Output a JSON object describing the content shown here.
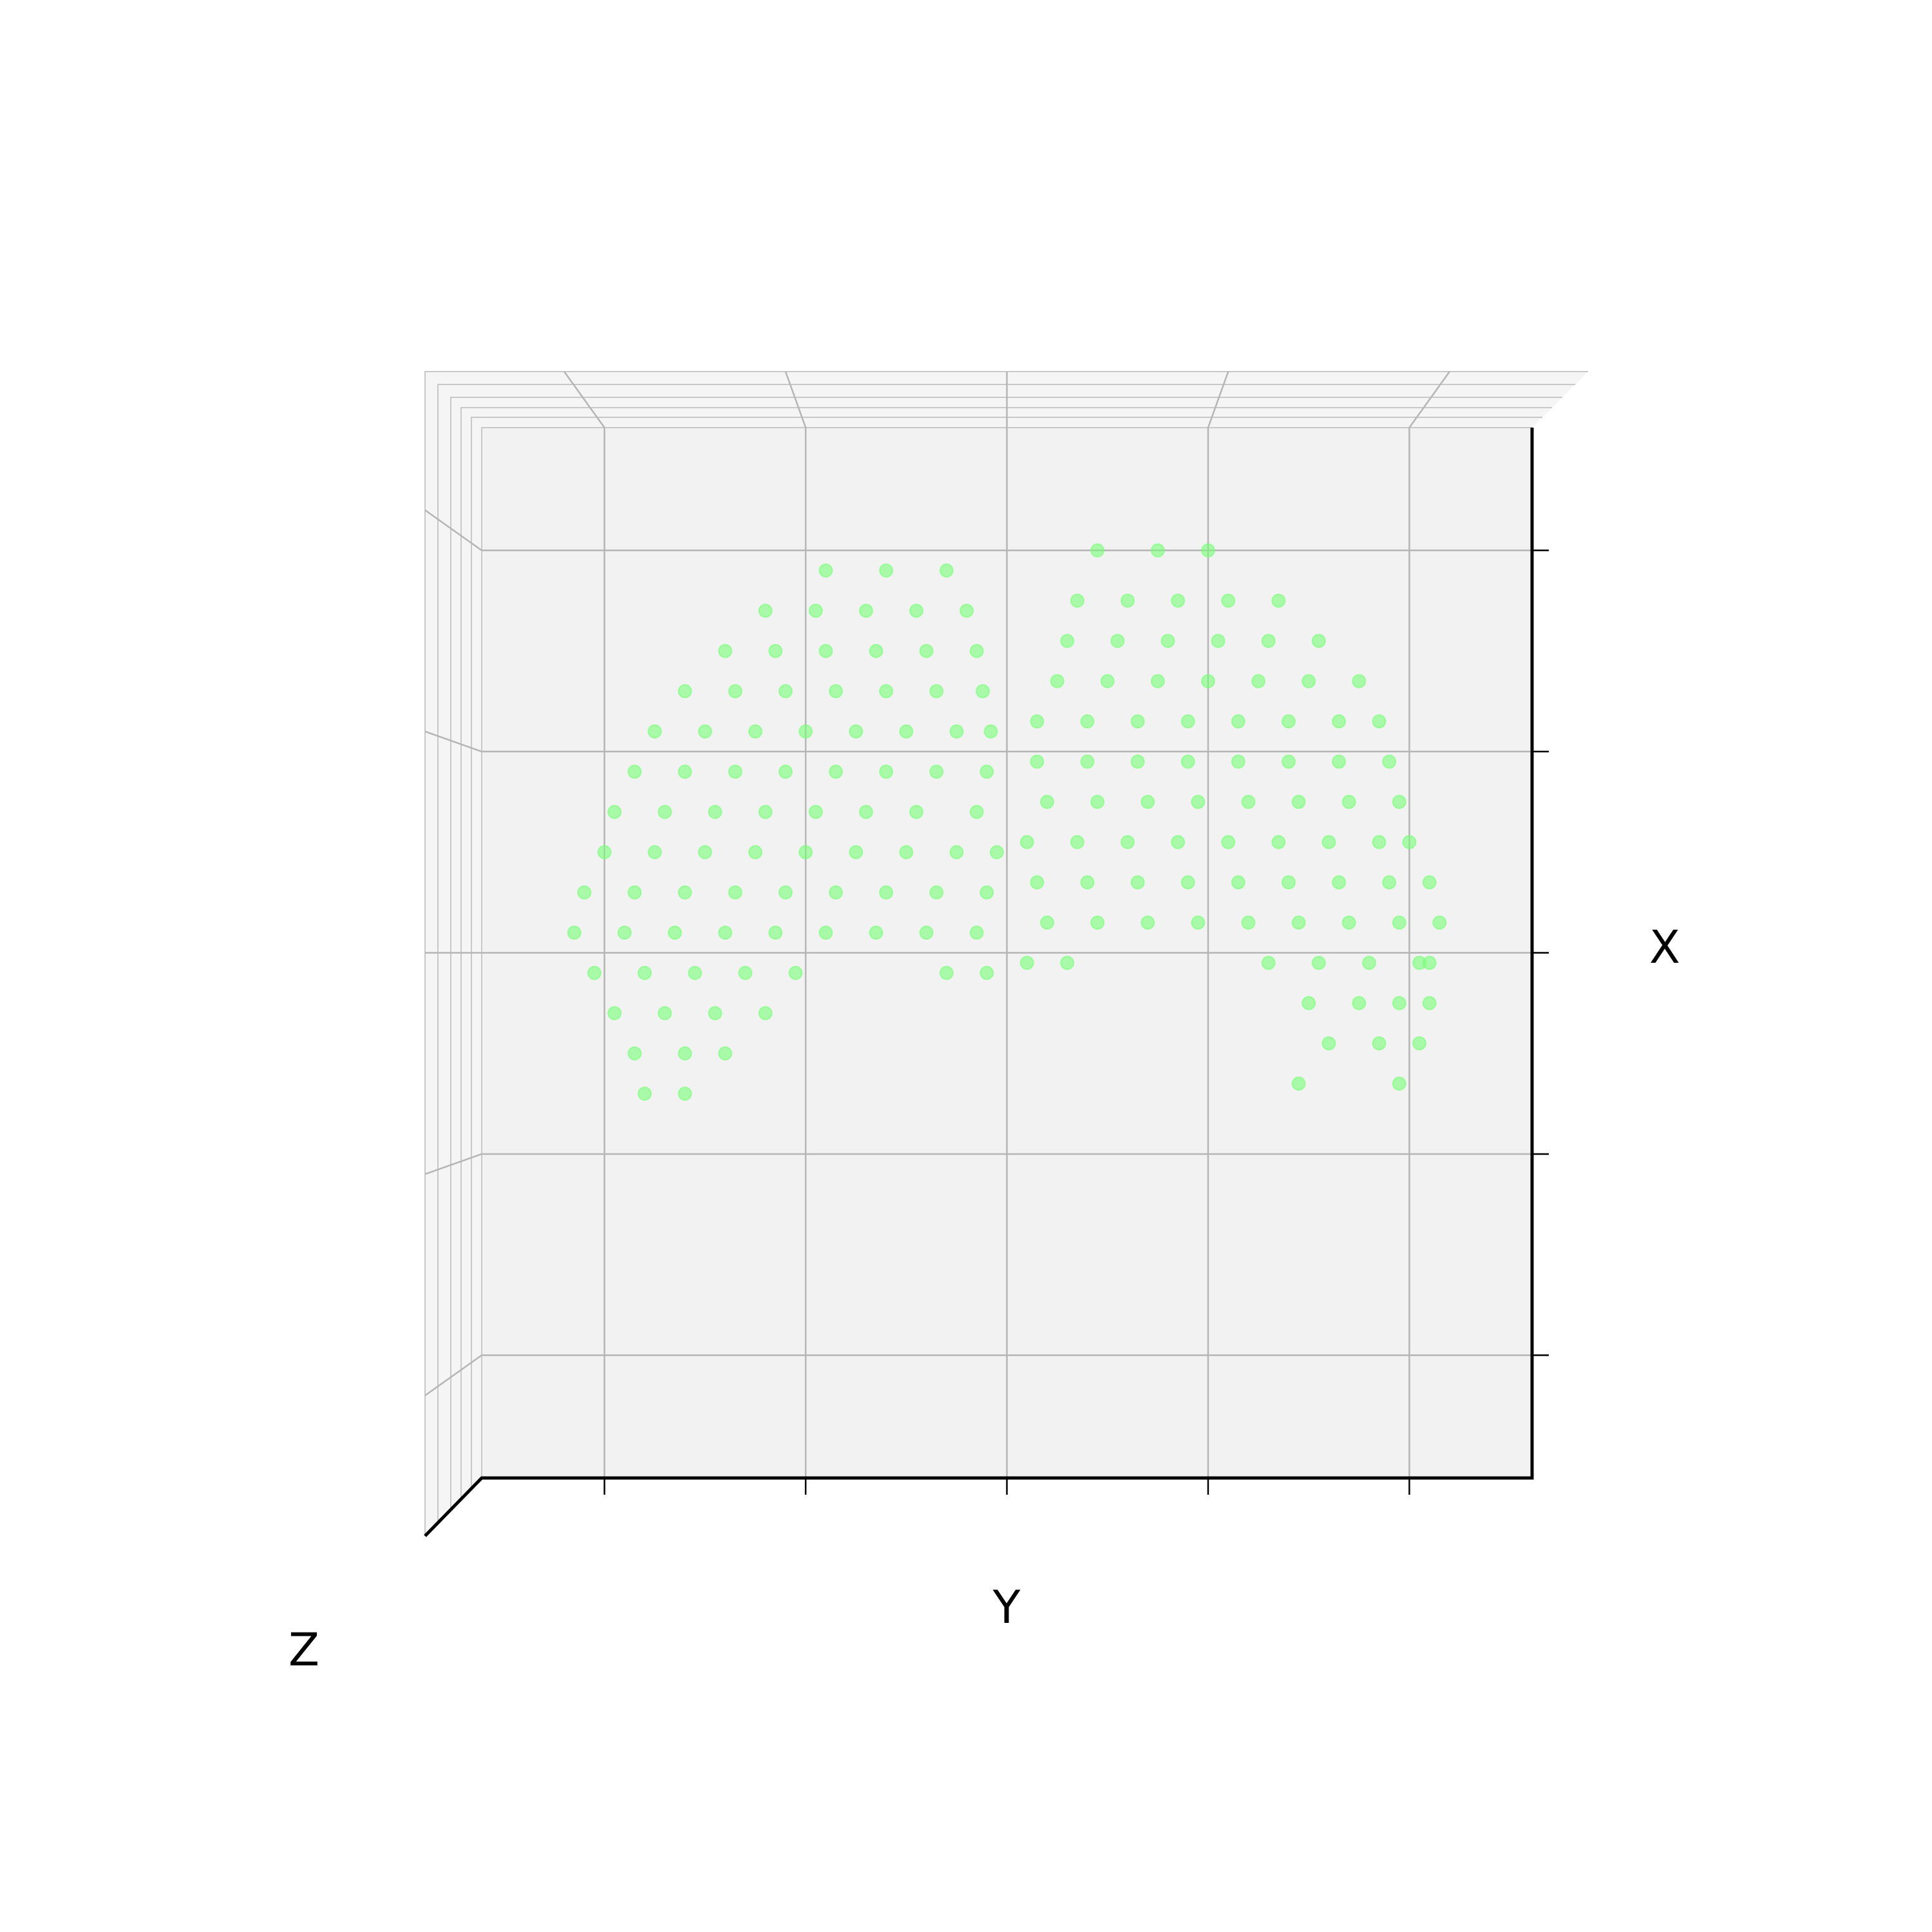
{
  "chart_data": {
    "type": "scatter3d",
    "xlabel": "X",
    "ylabel": "Y",
    "zlabel": "Z",
    "color": "#77ff77",
    "grid": true,
    "xlim": [
      -2.61,
      2.61
    ],
    "xticks": [
      -2,
      -1,
      0,
      1,
      2
    ],
    "ylim": [
      -2.61,
      2.61
    ],
    "yticks": [
      -2,
      -1,
      0,
      1,
      2
    ],
    "y": [
      -0.9,
      -0.6,
      -0.3,
      -1.2,
      -0.95,
      -0.7,
      -0.45,
      -0.2,
      -1.4,
      -1.15,
      -0.9,
      -0.65,
      -0.4,
      -0.15,
      -1.6,
      -1.35,
      -1.1,
      -0.85,
      -0.6,
      -0.35,
      -0.12,
      -1.75,
      -1.5,
      -1.25,
      -1.0,
      -0.75,
      -0.5,
      -0.25,
      -0.08,
      -1.85,
      -1.6,
      -1.35,
      -1.1,
      -0.85,
      -0.6,
      -0.35,
      -0.1,
      -1.95,
      -1.7,
      -1.45,
      -1.2,
      -0.95,
      -0.7,
      -0.45,
      -0.15,
      -2.0,
      -1.75,
      -1.5,
      -1.25,
      -1.0,
      -0.75,
      -0.5,
      -0.25,
      -0.05,
      -2.1,
      -1.85,
      -1.6,
      -1.35,
      -1.1,
      -0.85,
      -0.6,
      -0.35,
      -0.1,
      -2.15,
      -1.9,
      -1.65,
      -1.4,
      -1.15,
      -0.9,
      -0.65,
      -0.4,
      -0.15,
      -2.05,
      -1.8,
      -1.55,
      -1.3,
      -1.05,
      -0.3,
      -0.1,
      -1.95,
      -1.7,
      -1.45,
      -1.2,
      -1.85,
      -1.6,
      -1.4,
      -1.8,
      -1.6,
      0.45,
      0.75,
      1.0,
      0.35,
      0.6,
      0.85,
      1.1,
      1.35,
      0.3,
      0.55,
      0.8,
      1.05,
      1.3,
      1.55,
      0.25,
      0.5,
      0.75,
      1.0,
      1.25,
      1.5,
      1.75,
      0.15,
      0.4,
      0.65,
      0.9,
      1.15,
      1.4,
      1.65,
      1.85,
      0.15,
      0.4,
      0.65,
      0.9,
      1.15,
      1.4,
      1.65,
      1.9,
      0.2,
      0.45,
      0.7,
      0.95,
      1.2,
      1.45,
      1.7,
      1.95,
      0.1,
      0.35,
      0.6,
      0.85,
      1.1,
      1.35,
      1.6,
      1.85,
      2.0,
      0.15,
      0.4,
      0.65,
      0.9,
      1.15,
      1.4,
      1.65,
      1.9,
      2.1,
      0.2,
      0.45,
      0.7,
      0.95,
      1.2,
      1.45,
      1.7,
      1.95,
      2.15,
      0.1,
      0.3,
      1.3,
      1.55,
      1.8,
      2.05,
      2.1,
      1.5,
      1.75,
      1.95,
      2.1,
      1.6,
      1.85,
      2.05,
      1.45,
      1.95
    ],
    "x": [
      1.9,
      1.9,
      1.9,
      1.7,
      1.7,
      1.7,
      1.7,
      1.7,
      1.5,
      1.5,
      1.5,
      1.5,
      1.5,
      1.5,
      1.3,
      1.3,
      1.3,
      1.3,
      1.3,
      1.3,
      1.3,
      1.1,
      1.1,
      1.1,
      1.1,
      1.1,
      1.1,
      1.1,
      1.1,
      0.9,
      0.9,
      0.9,
      0.9,
      0.9,
      0.9,
      0.9,
      0.9,
      0.7,
      0.7,
      0.7,
      0.7,
      0.7,
      0.7,
      0.7,
      0.7,
      0.5,
      0.5,
      0.5,
      0.5,
      0.5,
      0.5,
      0.5,
      0.5,
      0.5,
      0.3,
      0.3,
      0.3,
      0.3,
      0.3,
      0.3,
      0.3,
      0.3,
      0.3,
      0.1,
      0.1,
      0.1,
      0.1,
      0.1,
      0.1,
      0.1,
      0.1,
      0.1,
      -0.1,
      -0.1,
      -0.1,
      -0.1,
      -0.1,
      -0.1,
      -0.1,
      -0.3,
      -0.3,
      -0.3,
      -0.3,
      -0.5,
      -0.5,
      -0.5,
      -0.7,
      -0.7,
      2.0,
      2.0,
      2.0,
      1.75,
      1.75,
      1.75,
      1.75,
      1.75,
      1.55,
      1.55,
      1.55,
      1.55,
      1.55,
      1.55,
      1.35,
      1.35,
      1.35,
      1.35,
      1.35,
      1.35,
      1.35,
      1.15,
      1.15,
      1.15,
      1.15,
      1.15,
      1.15,
      1.15,
      1.15,
      0.95,
      0.95,
      0.95,
      0.95,
      0.95,
      0.95,
      0.95,
      0.95,
      0.75,
      0.75,
      0.75,
      0.75,
      0.75,
      0.75,
      0.75,
      0.75,
      0.55,
      0.55,
      0.55,
      0.55,
      0.55,
      0.55,
      0.55,
      0.55,
      0.55,
      0.35,
      0.35,
      0.35,
      0.35,
      0.35,
      0.35,
      0.35,
      0.35,
      0.35,
      0.15,
      0.15,
      0.15,
      0.15,
      0.15,
      0.15,
      0.15,
      0.15,
      0.15,
      -0.05,
      -0.05,
      -0.05,
      -0.05,
      -0.05,
      -0.05,
      -0.05,
      -0.25,
      -0.25,
      -0.25,
      -0.25,
      -0.45,
      -0.45,
      -0.45,
      -0.65,
      -0.65
    ]
  }
}
